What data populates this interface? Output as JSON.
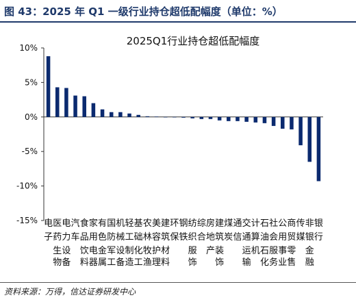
{
  "header": {
    "figure_title": "图 43：2025 年 Q1 一级行业持仓超低配幅度（单位：%）"
  },
  "footer": {
    "source": "资料来源：万得，信达证券研发中心"
  },
  "colors": {
    "bar": "#0b2a6f",
    "title": "#1f3a6b",
    "axis": "#333333"
  },
  "chart_data": {
    "type": "bar",
    "title": "2025Q1行业持仓超低配幅度",
    "xlabel": "",
    "ylabel": "",
    "ylim": [
      -15,
      10
    ],
    "y_ticks": [
      -15,
      -10,
      -5,
      0,
      5,
      10
    ],
    "y_tick_labels": [
      "-15%",
      "-10%",
      "-5%",
      "0%",
      "5%",
      "10%"
    ],
    "grid": false,
    "legend": "none",
    "categories": [
      "电子",
      "医药生物",
      "电力设备",
      "汽车",
      "食品饮料",
      "家用电器",
      "有色金属",
      "国防军工",
      "机械设备",
      "轻工制造",
      "基础化工",
      "农林牧渔",
      "美容护理",
      "建筑材料",
      "环保",
      "钢铁",
      "纺织服饰",
      "综合",
      "房地产",
      "建筑装饰",
      "煤炭",
      "通信",
      "交通运输",
      "计算机",
      "石油石化",
      "社会服务",
      "公用事业",
      "商贸零售",
      "传媒",
      "非银金融",
      "银行"
    ],
    "category_labels": [
      [
        "电",
        "子",
        ""
      ],
      [
        "医",
        "药",
        "生物"
      ],
      [
        "电",
        "力",
        "设备"
      ],
      [
        "汽",
        "车",
        ""
      ],
      [
        "食",
        "品",
        "饮料"
      ],
      [
        "家",
        "用",
        "电器"
      ],
      [
        "有",
        "色",
        "金属"
      ],
      [
        "国",
        "防",
        "军工"
      ],
      [
        "机",
        "械",
        "设备"
      ],
      [
        "轻",
        "工",
        "制造"
      ],
      [
        "基",
        "础",
        "化工"
      ],
      [
        "农",
        "林",
        "牧渔"
      ],
      [
        "美",
        "容",
        "护理"
      ],
      [
        "建",
        "筑",
        "材料"
      ],
      [
        "环",
        "保",
        ""
      ],
      [
        "钢",
        "铁",
        ""
      ],
      [
        "纺",
        "织",
        "服饰"
      ],
      [
        "综",
        "合",
        ""
      ],
      [
        "房",
        "地",
        "产"
      ],
      [
        "建",
        "筑",
        "装饰"
      ],
      [
        "煤",
        "炭",
        ""
      ],
      [
        "通",
        "信",
        ""
      ],
      [
        "交",
        "通",
        "运输"
      ],
      [
        "计",
        "算",
        "机"
      ],
      [
        "石",
        "油",
        "石化"
      ],
      [
        "社",
        "会",
        "服务"
      ],
      [
        "公",
        "用",
        "事业"
      ],
      [
        "商",
        "贸",
        "零售"
      ],
      [
        "传",
        "媒",
        ""
      ],
      [
        "非",
        "银",
        "金融"
      ],
      [
        "银",
        "行",
        ""
      ]
    ],
    "values": [
      8.8,
      4.3,
      4.2,
      3.1,
      3.0,
      2.0,
      1.1,
      0.7,
      0.7,
      0.5,
      0.3,
      0.1,
      0.05,
      0.0,
      0.0,
      -0.1,
      -0.2,
      -0.3,
      -0.3,
      -0.5,
      -0.6,
      -0.6,
      -0.7,
      -0.8,
      -0.9,
      -1.3,
      -1.7,
      -1.8,
      -4.1,
      -6.5,
      -9.3
    ]
  }
}
